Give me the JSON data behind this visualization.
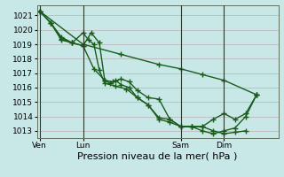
{
  "bg_color": "#c8e8e8",
  "grid_color": "#c0b8c0",
  "line_color": "#1a5c1a",
  "marker": "+",
  "markersize": 4,
  "linewidth": 1.0,
  "markeredgewidth": 1.0,
  "xlabel": "Pression niveau de la mer( hPa )",
  "xlabel_fontsize": 8,
  "tick_fontsize": 6.5,
  "ylim": [
    1012.5,
    1021.7
  ],
  "yticks": [
    1013,
    1014,
    1015,
    1016,
    1017,
    1018,
    1019,
    1020,
    1021
  ],
  "xtick_labels": [
    "Ven",
    "Lun",
    "Sam",
    "Dim"
  ],
  "xtick_positions": [
    0,
    16,
    52,
    68
  ],
  "vline_positions": [
    0,
    16,
    52,
    68
  ],
  "xlim": [
    -1,
    88
  ],
  "series": [
    {
      "x": [
        0,
        16,
        30,
        44,
        52,
        60,
        68,
        80
      ],
      "y": [
        1021.3,
        1019.0,
        1018.3,
        1017.6,
        1017.3,
        1016.9,
        1016.5,
        1015.5
      ]
    },
    {
      "x": [
        0,
        4,
        8,
        12,
        16,
        19,
        22,
        24,
        27,
        30,
        33,
        36,
        40,
        44,
        48,
        52,
        56,
        60,
        64,
        68,
        72,
        76
      ],
      "y": [
        1021.3,
        1020.5,
        1019.3,
        1019.1,
        1018.9,
        1019.8,
        1019.1,
        1016.5,
        1016.4,
        1016.6,
        1016.4,
        1015.8,
        1015.3,
        1015.2,
        1013.8,
        1013.3,
        1013.3,
        1013.3,
        1013.0,
        1012.8,
        1012.9,
        1013.0
      ]
    },
    {
      "x": [
        0,
        4,
        8,
        12,
        16,
        20,
        24,
        26,
        28,
        30,
        33,
        36,
        40,
        44,
        48,
        52,
        56,
        60,
        64,
        68,
        72,
        76,
        80
      ],
      "y": [
        1021.3,
        1020.5,
        1019.4,
        1019.1,
        1018.9,
        1017.3,
        1016.5,
        1016.3,
        1016.5,
        1016.2,
        1016.0,
        1015.3,
        1014.8,
        1013.9,
        1013.8,
        1013.3,
        1013.3,
        1013.3,
        1013.8,
        1014.2,
        1013.8,
        1014.2,
        1015.5
      ]
    },
    {
      "x": [
        0,
        4,
        8,
        12,
        16,
        18,
        20,
        22,
        24,
        28,
        32,
        36,
        40,
        44,
        48,
        52,
        56,
        60,
        64,
        68,
        72,
        76,
        80
      ],
      "y": [
        1021.3,
        1020.5,
        1019.5,
        1019.1,
        1019.8,
        1019.3,
        1019.0,
        1017.2,
        1016.3,
        1016.1,
        1015.9,
        1015.3,
        1014.8,
        1013.8,
        1013.6,
        1013.3,
        1013.3,
        1013.0,
        1012.8,
        1013.0,
        1013.2,
        1014.0,
        1015.5
      ]
    }
  ]
}
